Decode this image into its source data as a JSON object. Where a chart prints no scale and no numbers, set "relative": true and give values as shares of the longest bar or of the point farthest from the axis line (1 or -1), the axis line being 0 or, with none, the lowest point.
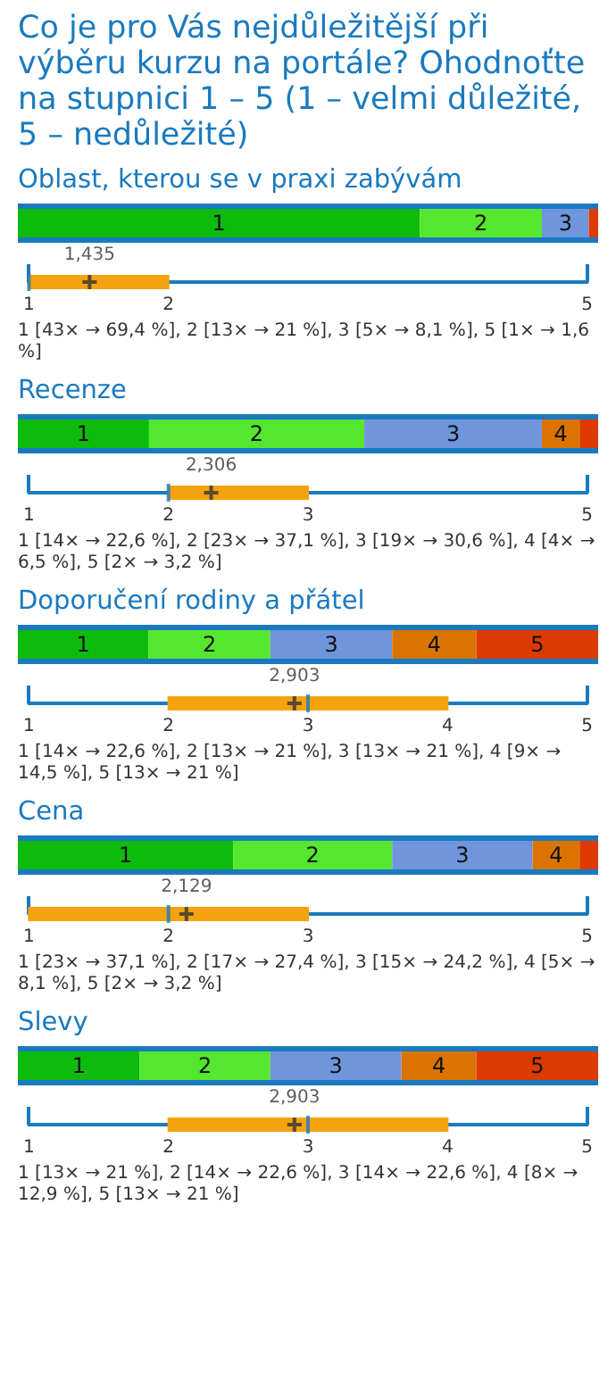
{
  "chart_data": [
    {
      "type": "bar",
      "title": "Co je pro Vás nejdůležitější při výběru kurzu na portále? Ohodnoťte na stupnici 1 – 5 (1 – velmi důležité, 5 – nedůležité)",
      "subtitle": "Oblast, kterou se v praxi zabývám",
      "orientation": "horizontal",
      "stacked": true,
      "relative": true,
      "categories": [
        null
      ],
      "series": [
        {
          "name": "1",
          "color": "#0cbb0c",
          "values": [
            0.693
          ]
        },
        {
          "name": "2",
          "color": "#55e62e",
          "values": [
            0.21
          ]
        },
        {
          "name": "3",
          "color": "#6f95dc",
          "values": [
            0.081
          ]
        },
        {
          "name": "5",
          "color": "#dd3a00",
          "values": [
            0.016
          ]
        }
      ]
    },
    {
      "type": "box",
      "orientation": "horizontal",
      "categories": [
        null
      ],
      "color": "#f5a20f",
      "xlim": [
        1,
        5
      ],
      "xticks": [
        1,
        2,
        5
      ],
      "boxes": [
        {
          "low": 1,
          "q1": 1,
          "median": 1,
          "q3": 2,
          "high": 2,
          "mean": 1.435
        }
      ],
      "marker": "cross",
      "annotations": [
        "1,435",
        "1 [43× → 69,4 %], 2 [13× → 21 %], 3 [5× → 8,1 %], 5 [1× → 1,6 %]"
      ]
    },
    {
      "type": "bar",
      "title": "Recenze",
      "orientation": "horizontal",
      "stacked": true,
      "relative": true,
      "categories": [
        null
      ],
      "series": [
        {
          "name": "1",
          "color": "#0cbb0c",
          "values": [
            0.226
          ]
        },
        {
          "name": "2",
          "color": "#55e62e",
          "values": [
            0.371
          ]
        },
        {
          "name": "3",
          "color": "#6f95dc",
          "values": [
            0.306
          ]
        },
        {
          "name": "4",
          "color": "#da7300",
          "values": [
            0.065
          ]
        },
        {
          "name": "5",
          "color": "#dd3a00",
          "values": [
            0.032
          ]
        }
      ]
    },
    {
      "type": "box",
      "orientation": "horizontal",
      "categories": [
        null
      ],
      "color": "#f5a20f",
      "xlim": [
        1,
        5
      ],
      "xticks": [
        1,
        2,
        3,
        5
      ],
      "boxes": [
        {
          "low": 2,
          "q1": 2,
          "median": 2,
          "q3": 3,
          "high": 3,
          "mean": 2.306
        }
      ],
      "marker": "cross",
      "annotations": [
        "2,306",
        "1 [14× → 22,6 %], 2 [23× → 37,1 %], 3 [19× → 30,6 %], 4 [4× → 6,5 %], 5 [2× → 3,2 %]"
      ]
    },
    {
      "type": "bar",
      "title": "Doporučení rodiny a přátel",
      "orientation": "horizontal",
      "stacked": true,
      "relative": true,
      "categories": [
        null
      ],
      "series": [
        {
          "name": "1",
          "color": "#0cbb0c",
          "values": [
            0.225
          ]
        },
        {
          "name": "2",
          "color": "#55e62e",
          "values": [
            0.21
          ]
        },
        {
          "name": "3",
          "color": "#6f95dc",
          "values": [
            0.21
          ]
        },
        {
          "name": "4",
          "color": "#da7300",
          "values": [
            0.145
          ]
        },
        {
          "name": "5",
          "color": "#dd3a00",
          "values": [
            0.21
          ]
        }
      ]
    },
    {
      "type": "box",
      "orientation": "horizontal",
      "categories": [
        null
      ],
      "color": "#f5a20f",
      "xlim": [
        1,
        5
      ],
      "xticks": [
        1,
        2,
        3,
        4,
        5
      ],
      "boxes": [
        {
          "low": 2,
          "q1": 2,
          "median": 3,
          "q3": 4,
          "high": 4,
          "mean": 2.903
        }
      ],
      "marker": "cross",
      "annotations": [
        "2,903",
        "1 [14× → 22,6 %], 2 [13× → 21 %], 3 [13× → 21 %], 4 [9× → 14,5 %], 5 [13× → 21 %]"
      ]
    },
    {
      "type": "bar",
      "title": "Cena",
      "orientation": "horizontal",
      "stacked": true,
      "relative": true,
      "categories": [
        null
      ],
      "series": [
        {
          "name": "1",
          "color": "#0cbb0c",
          "values": [
            0.371
          ]
        },
        {
          "name": "2",
          "color": "#55e62e",
          "values": [
            0.274
          ]
        },
        {
          "name": "3",
          "color": "#6f95dc",
          "values": [
            0.242
          ]
        },
        {
          "name": "4",
          "color": "#da7300",
          "values": [
            0.081
          ]
        },
        {
          "name": "5",
          "color": "#dd3a00",
          "values": [
            0.032
          ]
        }
      ]
    },
    {
      "type": "box",
      "orientation": "horizontal",
      "categories": [
        null
      ],
      "color": "#f5a20f",
      "xlim": [
        1,
        5
      ],
      "xticks": [
        1,
        2,
        3,
        5
      ],
      "boxes": [
        {
          "low": 1,
          "q1": 1,
          "median": 2,
          "q3": 3,
          "high": 3,
          "mean": 2.129
        }
      ],
      "marker": "cross",
      "annotations": [
        "2,129",
        "1 [23× → 37,1 %], 2 [17× → 27,4 %], 3 [15× → 24,2 %], 4 [5× → 8,1 %], 5 [2× → 3,2 %]"
      ]
    },
    {
      "type": "bar",
      "title": "Slevy",
      "orientation": "horizontal",
      "stacked": true,
      "relative": true,
      "categories": [
        null
      ],
      "series": [
        {
          "name": "1",
          "color": "#0cbb0c",
          "values": [
            0.21
          ]
        },
        {
          "name": "2",
          "color": "#55e62e",
          "values": [
            0.225
          ]
        },
        {
          "name": "3",
          "color": "#6f95dc",
          "values": [
            0.226
          ]
        },
        {
          "name": "4",
          "color": "#da7300",
          "values": [
            0.129
          ]
        },
        {
          "name": "5",
          "color": "#dd3a00",
          "values": [
            0.21
          ]
        }
      ]
    },
    {
      "type": "box",
      "orientation": "horizontal",
      "categories": [
        null
      ],
      "color": "#f5a20f",
      "xlim": [
        1,
        5
      ],
      "xticks": [
        1,
        2,
        3,
        4,
        5
      ],
      "boxes": [
        {
          "low": 2,
          "q1": 2,
          "median": 3,
          "q3": 4,
          "high": 4,
          "mean": 2.903
        }
      ],
      "marker": "cross",
      "annotations": [
        "2,903",
        "1 [13× → 21 %], 2 [14× → 22,6 %], 3 [14× → 22,6 %], 4 [8× → 12,9 %], 5 [13× → 21 %]"
      ]
    }
  ]
}
